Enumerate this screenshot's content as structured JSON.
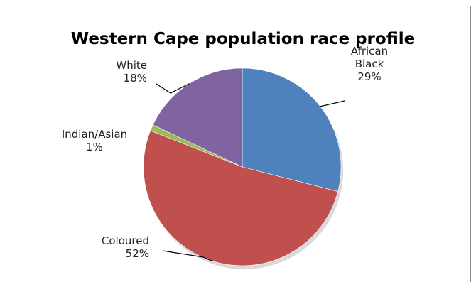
{
  "chart_data": {
    "type": "pie",
    "title": "Western Cape population race profile",
    "slices": [
      {
        "label": [
          "African",
          "Black"
        ],
        "pct_text": "29%",
        "value": 29,
        "color": "#4f81bd"
      },
      {
        "label": [
          "Coloured"
        ],
        "pct_text": "52%",
        "value": 52,
        "color": "#c0504d"
      },
      {
        "label": [
          "Indian/Asian"
        ],
        "pct_text": "1%",
        "value": 1,
        "color": "#9bbb59"
      },
      {
        "label": [
          "White"
        ],
        "pct_text": "18%",
        "value": 18,
        "color": "#8064a2"
      }
    ],
    "legend": "none",
    "data_labels": "outside with leader lines"
  }
}
